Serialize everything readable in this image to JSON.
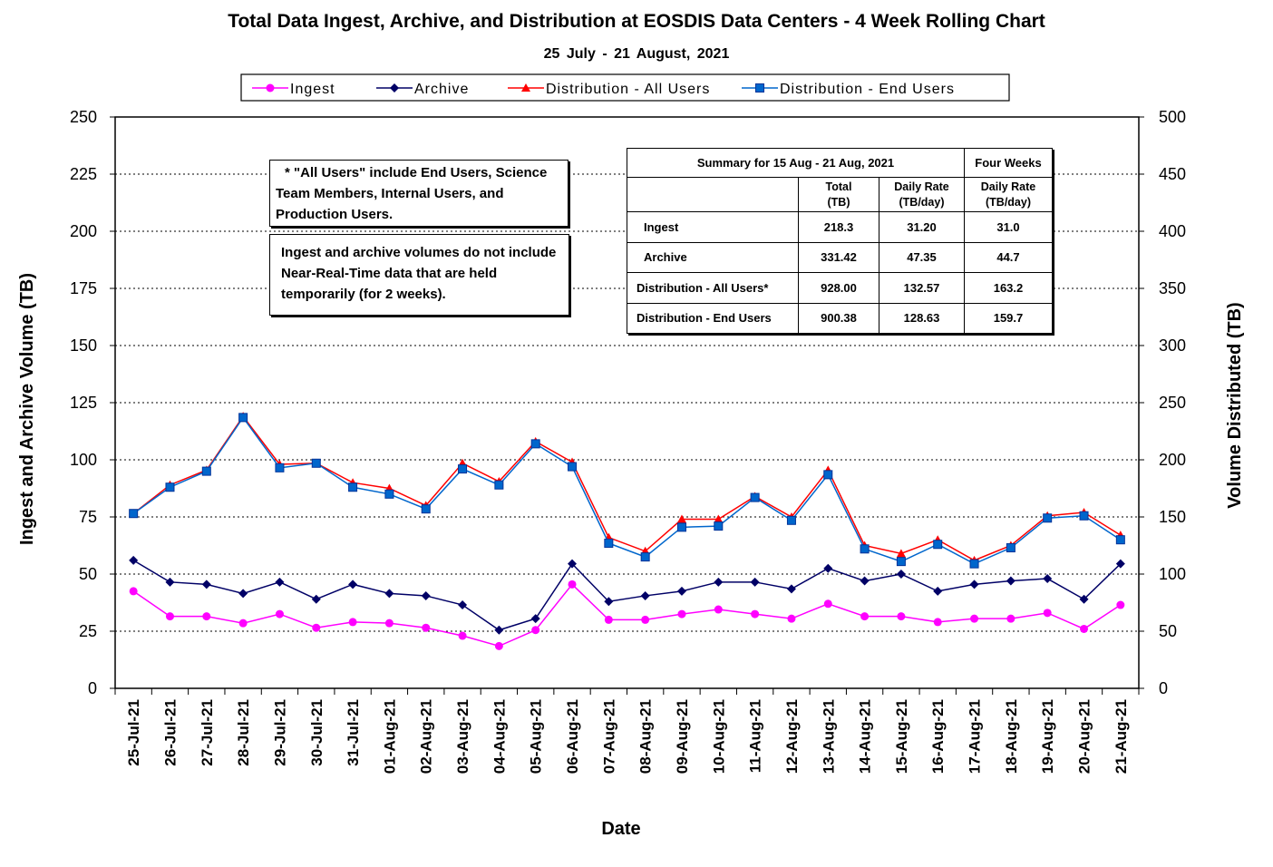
{
  "title": "Total Data Ingest, Archive, and  Distribution at EOSDIS Data Centers - 4 Week Rolling Chart",
  "subtitle": "25  July   - 21  August,  2021",
  "notes": {
    "all_users": " * \"All Users\" include End Users, Science Team Members,  Internal Users, and Production Users.",
    "nrt": "Ingest and archive volumes do not include Near-Real-Time data that are held temporarily (for 2 weeks)."
  },
  "summary": {
    "heading": "Summary  for  15 Aug  - 21 Aug, 2021",
    "four_weeks_heading": "Four Weeks",
    "col_total_1": "Total",
    "col_total_2": "(TB)",
    "col_rate_1": "Daily Rate",
    "col_rate_2": "(TB/day)",
    "col_rate4_1": "Daily Rate",
    "col_rate4_2": "(TB/day)",
    "rows": [
      {
        "label": "Ingest",
        "total": "218.3",
        "rate": "31.20",
        "rate4": "31.0"
      },
      {
        "label": "Archive",
        "total": "331.42",
        "rate": "47.35",
        "rate4": "44.7"
      },
      {
        "label": "Distribution - All Users*",
        "total": "928.00",
        "rate": "132.57",
        "rate4": "163.2"
      },
      {
        "label": "Distribution - End Users",
        "total": "900.38",
        "rate": "128.63",
        "rate4": "159.7"
      }
    ]
  },
  "chart_data": {
    "type": "line",
    "title": "Total Data Ingest, Archive, and  Distribution at EOSDIS Data Centers - 4 Week Rolling Chart",
    "subtitle": "25  July   - 21  August,  2021",
    "xlabel": "Date",
    "ylabel": "Ingest and Archive Volume (TB)",
    "y2label": "Volume Distributed (TB)",
    "ylim": [
      0,
      250
    ],
    "y2lim": [
      0,
      500
    ],
    "yticks": [
      0,
      25,
      50,
      75,
      100,
      125,
      150,
      175,
      200,
      225,
      250
    ],
    "y2ticks": [
      0,
      50,
      100,
      150,
      200,
      250,
      300,
      350,
      400,
      450,
      500
    ],
    "grid": "horizontal dotted",
    "legend_position": "top",
    "categories": [
      "25-Jul-21",
      "26-Jul-21",
      "27-Jul-21",
      "28-Jul-21",
      "29-Jul-21",
      "30-Jul-21",
      "31-Jul-21",
      "01-Aug-21",
      "02-Aug-21",
      "03-Aug-21",
      "04-Aug-21",
      "05-Aug-21",
      "06-Aug-21",
      "07-Aug-21",
      "08-Aug-21",
      "09-Aug-21",
      "10-Aug-21",
      "11-Aug-21",
      "12-Aug-21",
      "13-Aug-21",
      "14-Aug-21",
      "15-Aug-21",
      "16-Aug-21",
      "17-Aug-21",
      "18-Aug-21",
      "19-Aug-21",
      "20-Aug-21",
      "21-Aug-21"
    ],
    "series": [
      {
        "name": "Ingest",
        "axis": "left",
        "color": "#ff00ff",
        "marker": "circle",
        "values": [
          42.5,
          31.5,
          31.5,
          28.5,
          32.5,
          26.5,
          29,
          28.5,
          26.5,
          23,
          18.5,
          25.5,
          45.5,
          30,
          30,
          32.5,
          34.5,
          32.5,
          30.5,
          37,
          31.5,
          31.5,
          29,
          30.5,
          30.5,
          33,
          26,
          36.5
        ]
      },
      {
        "name": "Archive",
        "axis": "left",
        "color": "#000066",
        "marker": "diamond",
        "values": [
          56,
          46.5,
          45.5,
          41.5,
          46.5,
          39,
          45.5,
          41.5,
          40.5,
          36.5,
          25.5,
          30.5,
          54.5,
          38,
          40.5,
          42.5,
          46.5,
          46.5,
          43.5,
          52.5,
          47,
          50,
          42.5,
          45.5,
          47,
          48,
          39,
          54.5
        ]
      },
      {
        "name": "Distribution - All Users",
        "axis": "right",
        "color": "#ff0000",
        "marker": "triangle",
        "values": [
          153,
          178,
          191,
          238,
          196,
          197,
          180,
          175,
          160,
          197,
          181,
          216,
          198,
          132,
          120,
          148,
          148,
          168,
          150,
          191,
          125,
          118,
          130,
          112,
          125,
          151,
          154,
          134
        ]
      },
      {
        "name": "Distribution - End Users",
        "axis": "right",
        "color": "#0066cc",
        "marker": "square",
        "values": [
          153,
          176,
          190,
          237,
          193,
          197,
          176,
          170,
          157,
          192,
          178,
          214,
          194,
          127,
          115,
          141,
          142,
          167,
          147,
          187,
          122,
          111,
          126,
          109,
          123,
          149,
          151,
          130
        ]
      }
    ]
  }
}
